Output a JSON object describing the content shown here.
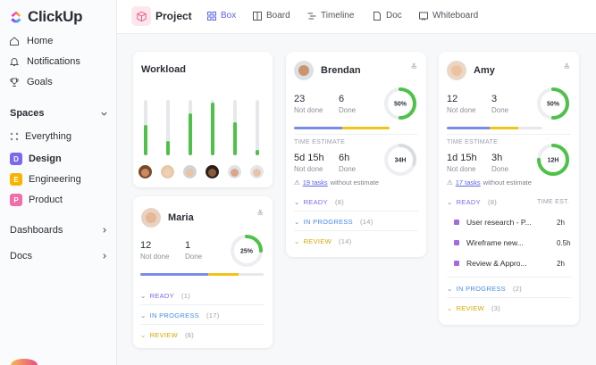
{
  "app": {
    "name": "ClickUp"
  },
  "sidebar": {
    "nav": [
      {
        "label": "Home",
        "icon": "home-icon"
      },
      {
        "label": "Notifications",
        "icon": "bell-icon"
      },
      {
        "label": "Goals",
        "icon": "trophy-icon"
      }
    ],
    "spaces_heading": "Spaces",
    "spaces": [
      {
        "label": "Everything",
        "badge": "",
        "color": ""
      },
      {
        "label": "Design",
        "badge": "D",
        "color": "#7b68ee"
      },
      {
        "label": "Engineering",
        "badge": "E",
        "color": "#f7b500"
      },
      {
        "label": "Product",
        "badge": "P",
        "color": "#f06fa8"
      }
    ],
    "dashboards_label": "Dashboards",
    "docs_label": "Docs"
  },
  "topbar": {
    "title": "Project",
    "tabs": [
      {
        "label": "Box",
        "icon": "grid-icon",
        "active": true
      },
      {
        "label": "Board",
        "icon": "board-icon",
        "active": false
      },
      {
        "label": "Timeline",
        "icon": "timeline-icon",
        "active": false
      },
      {
        "label": "Doc",
        "icon": "doc-icon",
        "active": false
      },
      {
        "label": "Whiteboard",
        "icon": "whiteboard-icon",
        "active": false
      }
    ]
  },
  "workload": {
    "title": "Workload",
    "bars": [
      0.55,
      0.25,
      0.75,
      0.95,
      0.6,
      0.1
    ]
  },
  "colors": {
    "accent": "#5b63e8",
    "green": "#4ec248",
    "ready": "#7b68ee",
    "in_progress": "#4a8be8",
    "review": "#f0c419"
  },
  "people": {
    "brendan": {
      "name": "Brendan",
      "not_done": "23",
      "not_done_label": "Not done",
      "done": "6",
      "done_label": "Done",
      "ring_pct": "50%",
      "ring_value": 0.5,
      "te_heading": "TIME ESTIMATE",
      "te_not_done": "5d 15h",
      "te_not_done_label": "Not done",
      "te_done": "6h",
      "te_done_label": "Done",
      "te_ring": "34H",
      "te_ring_value": 0.3,
      "te_note_link": "19 tasks",
      "te_note_rest": "without estimate",
      "statuses": [
        {
          "label": "READY",
          "count": "(8)"
        },
        {
          "label": "IN PROGRESS",
          "count": "(14)"
        },
        {
          "label": "REVIEW",
          "count": "(14)"
        }
      ]
    },
    "amy": {
      "name": "Amy",
      "not_done": "12",
      "not_done_label": "Not done",
      "done": "3",
      "done_label": "Done",
      "ring_pct": "50%",
      "ring_value": 0.5,
      "te_heading": "TIME ESTIMATE",
      "te_not_done": "1d 15h",
      "te_not_done_label": "Not done",
      "te_done": "3h",
      "te_done_label": "Done",
      "te_ring": "12H",
      "te_ring_value": 0.75,
      "te_note_link": "17 tasks",
      "te_note_rest": "without estimate",
      "ready_label": "READY",
      "ready_count": "(8)",
      "time_est_label": "TIME EST.",
      "tasks": [
        {
          "name": "User research - P...",
          "time": "2h"
        },
        {
          "name": "Wireframe new...",
          "time": "0.5h"
        },
        {
          "name": "Review & Appro...",
          "time": "2h"
        }
      ],
      "statuses": [
        {
          "label": "IN PROGRESS",
          "count": "(2)"
        },
        {
          "label": "REVIEW",
          "count": "(3)"
        }
      ]
    },
    "maria": {
      "name": "Maria",
      "not_done": "12",
      "not_done_label": "Not done",
      "done": "1",
      "done_label": "Done",
      "ring_pct": "25%",
      "ring_value": 0.25,
      "statuses": [
        {
          "label": "READY",
          "count": "(1)"
        },
        {
          "label": "IN PROGRESS",
          "count": "(17)"
        },
        {
          "label": "REVIEW",
          "count": "(8)"
        }
      ]
    }
  }
}
